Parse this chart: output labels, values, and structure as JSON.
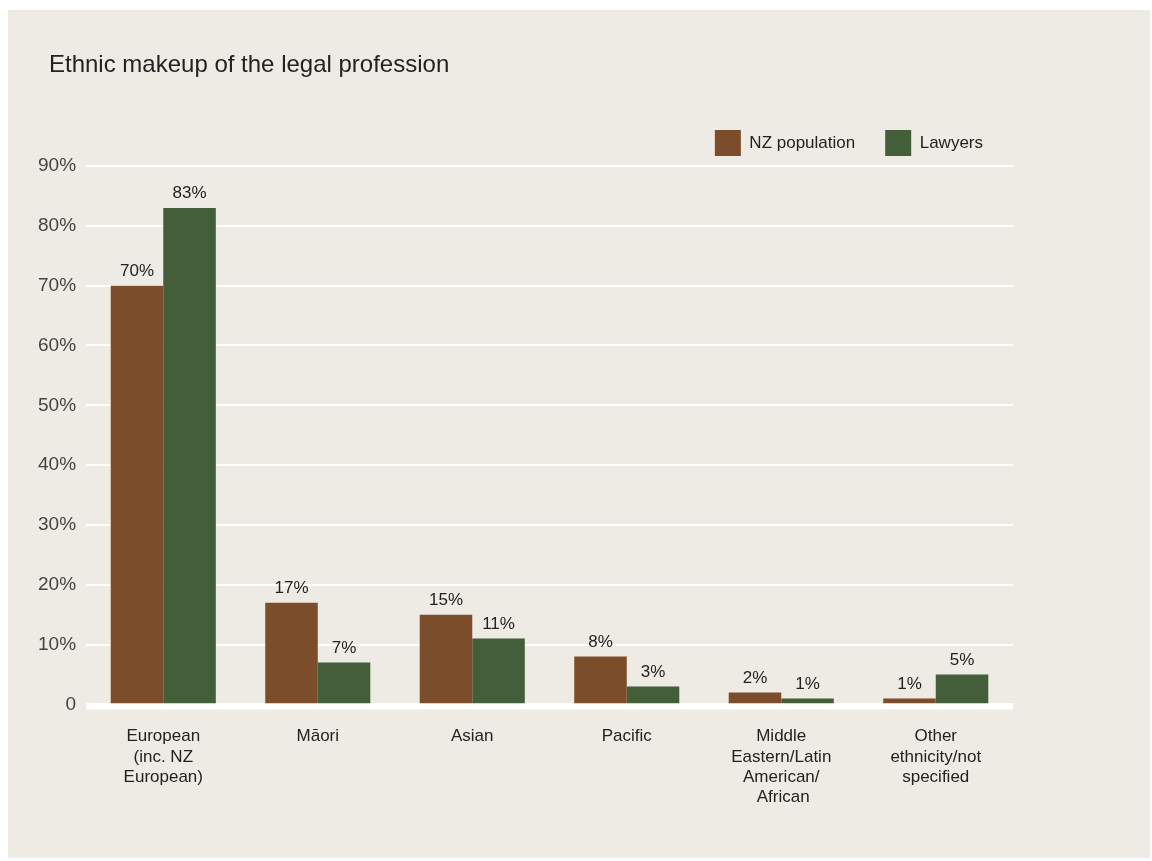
{
  "chart_data": {
    "type": "bar",
    "title": "Ethnic makeup of the legal profession",
    "categories": [
      "European (inc. NZ European)",
      "Māori",
      "Asian",
      "Pacific",
      "Middle Eastern/Latin American/ African",
      "Other ethnicity/not specified"
    ],
    "series": [
      {
        "name": "NZ population",
        "color": "#7b4d2b",
        "values": [
          70,
          17,
          15,
          8,
          2,
          1
        ]
      },
      {
        "name": "Lawyers",
        "color": "#435e38",
        "values": [
          83,
          7,
          11,
          3,
          1,
          5
        ]
      }
    ],
    "ylim": [
      0,
      90
    ],
    "yticks": [
      {
        "value": 0,
        "label": "0"
      },
      {
        "value": 10,
        "label": "10%"
      },
      {
        "value": 20,
        "label": "20%"
      },
      {
        "value": 30,
        "label": "30%"
      },
      {
        "value": 40,
        "label": "40%"
      },
      {
        "value": 50,
        "label": "50%"
      },
      {
        "value": 60,
        "label": "60%"
      },
      {
        "value": 70,
        "label": "70%"
      },
      {
        "value": 80,
        "label": "80%"
      },
      {
        "value": 90,
        "label": "90%"
      }
    ],
    "grid": "y",
    "legend": "top right",
    "value_labels": [
      [
        "70%",
        "17%",
        "15%",
        "8%",
        "2%",
        "1%"
      ],
      [
        "83%",
        "7%",
        "11%",
        "3%",
        "1%",
        "5%"
      ]
    ]
  }
}
